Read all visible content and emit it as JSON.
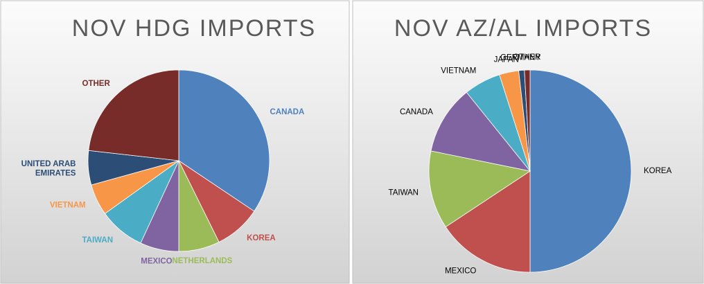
{
  "chart_data": [
    {
      "type": "pie",
      "title": "NOV HDG IMPORTS",
      "categories": [
        "CANADA",
        "KOREA",
        "NETHERLANDS",
        "MEXICO",
        "TAIWAN",
        "VIETNAM",
        "UNITED ARAB EMIRATES",
        "OTHER"
      ],
      "values": [
        34.4,
        8.3,
        7.3,
        6.9,
        8.2,
        5.6,
        6.1,
        23.2
      ],
      "colors": [
        "#4f81bd",
        "#c0504d",
        "#9bbb59",
        "#8064a2",
        "#4bacc6",
        "#f79646",
        "#2c4d75",
        "#772c2a"
      ],
      "labels_colored": true
    },
    {
      "type": "pie",
      "title": "NOV AZ/AL IMPORTS",
      "categories": [
        "KOREA",
        "MEXICO",
        "TAIWAN",
        "CANADA",
        "VIETNAM",
        "JAPAN",
        "GERMANY",
        "OTHER"
      ],
      "values": [
        50,
        15.7,
        12.5,
        11,
        5.9,
        3.1,
        0.9,
        0.9
      ],
      "colors": [
        "#4f81bd",
        "#c0504d",
        "#9bbb59",
        "#8064a2",
        "#4bacc6",
        "#f79646",
        "#2c4d75",
        "#772c2a"
      ],
      "labels_colored": false
    }
  ]
}
